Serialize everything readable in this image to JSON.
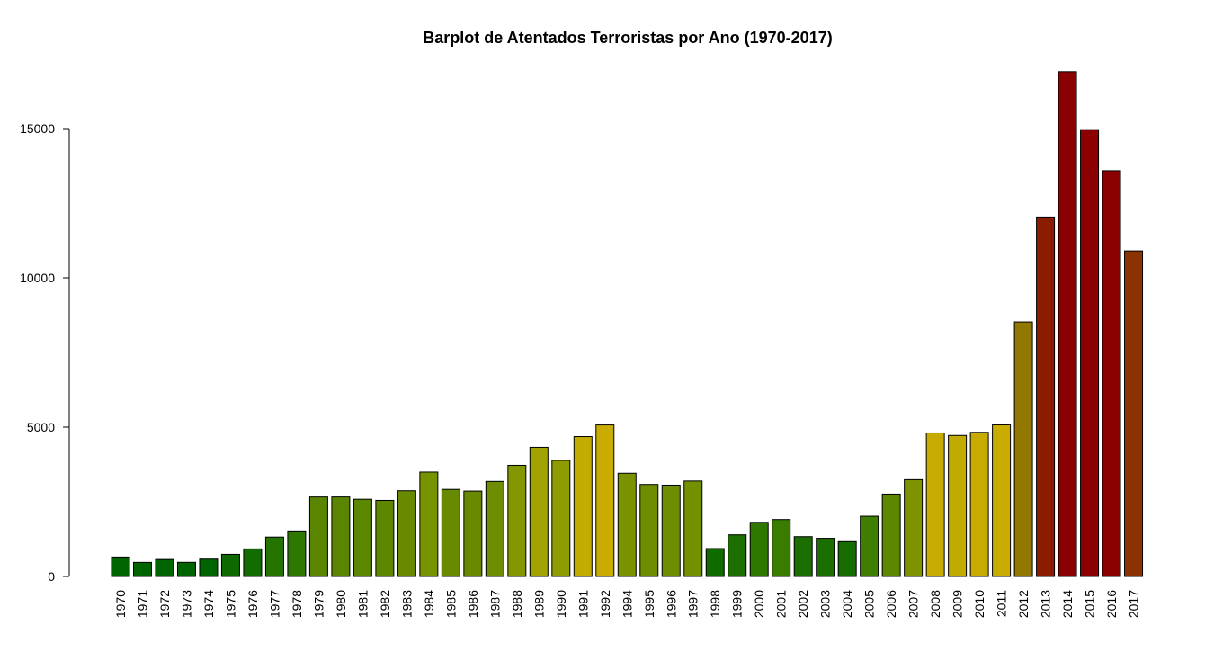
{
  "chart_data": {
    "type": "bar",
    "title": "Barplot de Atentados Terroristas por Ano (1970-2017)",
    "xlabel": "",
    "ylabel": "",
    "ylim": [
      0,
      17000
    ],
    "y_ticks": [
      0,
      5000,
      10000,
      15000
    ],
    "y_tick_labels": [
      "0",
      "5000",
      "10000",
      "15000"
    ],
    "grid": false,
    "legend": "none",
    "categories": [
      "1970",
      "1971",
      "1972",
      "1973",
      "1974",
      "1975",
      "1976",
      "1977",
      "1978",
      "1979",
      "1980",
      "1981",
      "1982",
      "1983",
      "1984",
      "1985",
      "1986",
      "1987",
      "1988",
      "1989",
      "1990",
      "1991",
      "1992",
      "1994",
      "1995",
      "1996",
      "1997",
      "1998",
      "1999",
      "2000",
      "2001",
      "2002",
      "2003",
      "2004",
      "2005",
      "2006",
      "2007",
      "2008",
      "2009",
      "2010",
      "2011",
      "2012",
      "2013",
      "2014",
      "2015",
      "2016",
      "2017"
    ],
    "values": [
      651,
      471,
      568,
      473,
      581,
      740,
      923,
      1319,
      1526,
      2661,
      2662,
      2585,
      2546,
      2870,
      3495,
      2916,
      2859,
      3183,
      3721,
      4324,
      3887,
      4683,
      5073,
      3456,
      3081,
      3058,
      3197,
      934,
      1395,
      1814,
      1907,
      1333,
      1278,
      1166,
      2017,
      2758,
      3242,
      4805,
      4721,
      4826,
      5076,
      8522,
      12036,
      16903,
      14965,
      13587,
      10900
    ],
    "bar_colors": [
      "#006400",
      "#006400",
      "#006400",
      "#006400",
      "#006400",
      "#0d6a00",
      "#136c00",
      "#267400",
      "#2f7800",
      "#598500",
      "#598500",
      "#5c8700",
      "#5e8700",
      "#678a00",
      "#789300",
      "#678a00",
      "#678a00",
      "#6f8d00",
      "#859700",
      "#a3a300",
      "#8f9c00",
      "#c2ac00",
      "#c9ac00",
      "#7a9200",
      "#6f8d00",
      "#6f8d00",
      "#739000",
      "#0f6a00",
      "#1c6f00",
      "#2f7800",
      "#397c00",
      "#1a6f00",
      "#1a6f00",
      "#156d00",
      "#3f7f00",
      "#5e8700",
      "#7d9400",
      "#c8ab00",
      "#c2ab00",
      "#c8ab00",
      "#c9ac00",
      "#927700",
      "#8b1c00",
      "#8b0000",
      "#8b0000",
      "#8b0000",
      "#8b3300"
    ]
  }
}
